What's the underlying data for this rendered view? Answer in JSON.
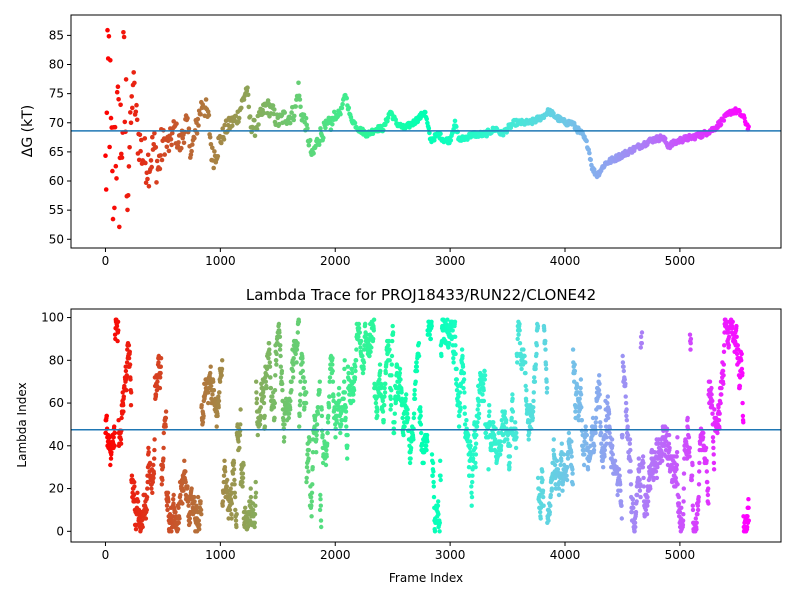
{
  "chart_data": [
    {
      "type": "scatter",
      "title": "",
      "xlabel": "",
      "ylabel": "ΔG (kT)",
      "xlim": [
        -300,
        5880
      ],
      "ylim": [
        48.5,
        88.5
      ],
      "xticks": [
        0,
        1000,
        2000,
        3000,
        4000,
        5000
      ],
      "yticks": [
        50,
        55,
        60,
        65,
        70,
        75,
        80,
        85
      ],
      "hline": 68.6,
      "hline_color": "#1f77b4",
      "colormap": "rainbow (red at frame 0 → violet at final frame)",
      "trace": [
        [
          0,
          60
        ],
        [
          30,
          80
        ],
        [
          60,
          55
        ],
        [
          90,
          70
        ],
        [
          120,
          63
        ],
        [
          160,
          75
        ],
        [
          200,
          62
        ],
        [
          240,
          77
        ],
        [
          280,
          68
        ],
        [
          330,
          64
        ],
        [
          380,
          63
        ],
        [
          420,
          66
        ],
        [
          460,
          62
        ],
        [
          500,
          67
        ],
        [
          550,
          66
        ],
        [
          600,
          69
        ],
        [
          650,
          66
        ],
        [
          700,
          70
        ],
        [
          750,
          65
        ],
        [
          800,
          70
        ],
        [
          850,
          74
        ],
        [
          900,
          70
        ],
        [
          930,
          64
        ],
        [
          960,
          65
        ],
        [
          1000,
          67
        ],
        [
          1050,
          69
        ],
        [
          1100,
          70
        ],
        [
          1150,
          71
        ],
        [
          1200,
          74
        ],
        [
          1230,
          76
        ],
        [
          1260,
          70
        ],
        [
          1300,
          69
        ],
        [
          1350,
          71
        ],
        [
          1400,
          73
        ],
        [
          1450,
          72
        ],
        [
          1500,
          70
        ],
        [
          1550,
          71
        ],
        [
          1600,
          71
        ],
        [
          1650,
          72
        ],
        [
          1680,
          76
        ],
        [
          1700,
          72
        ],
        [
          1740,
          70
        ],
        [
          1770,
          67
        ],
        [
          1800,
          64
        ],
        [
          1830,
          66
        ],
        [
          1870,
          68
        ],
        [
          1920,
          69
        ],
        [
          1970,
          70
        ],
        [
          2000,
          71
        ],
        [
          2050,
          72
        ],
        [
          2090,
          75
        ],
        [
          2130,
          71
        ],
        [
          2200,
          69
        ],
        [
          2280,
          68
        ],
        [
          2360,
          69
        ],
        [
          2420,
          69
        ],
        [
          2480,
          72
        ],
        [
          2530,
          70
        ],
        [
          2600,
          69
        ],
        [
          2680,
          70
        ],
        [
          2740,
          71
        ],
        [
          2780,
          72
        ],
        [
          2830,
          67
        ],
        [
          2900,
          68
        ],
        [
          2950,
          67
        ],
        [
          3000,
          67
        ],
        [
          3040,
          70
        ],
        [
          3080,
          67
        ],
        [
          3200,
          68
        ],
        [
          3300,
          68
        ],
        [
          3400,
          69
        ],
        [
          3450,
          68
        ],
        [
          3500,
          69
        ],
        [
          3560,
          70
        ],
        [
          3620,
          70
        ],
        [
          3700,
          70
        ],
        [
          3800,
          71
        ],
        [
          3860,
          72
        ],
        [
          3920,
          71
        ],
        [
          4000,
          70
        ],
        [
          4060,
          70
        ],
        [
          4100,
          69
        ],
        [
          4150,
          68
        ],
        [
          4200,
          66
        ],
        [
          4240,
          62
        ],
        [
          4280,
          61
        ],
        [
          4350,
          63
        ],
        [
          4450,
          64
        ],
        [
          4550,
          65
        ],
        [
          4650,
          66
        ],
        [
          4750,
          67
        ],
        [
          4850,
          67.5
        ],
        [
          4900,
          66
        ],
        [
          5000,
          67
        ],
        [
          5100,
          67.5
        ],
        [
          5200,
          68
        ],
        [
          5300,
          69
        ],
        [
          5400,
          71
        ],
        [
          5450,
          72
        ],
        [
          5500,
          72
        ],
        [
          5550,
          71
        ],
        [
          5600,
          69
        ]
      ]
    },
    {
      "type": "scatter",
      "title": "Lambda Trace for PROJ18433/RUN22/CLONE42",
      "xlabel": "Frame Index",
      "ylabel": "Lambda Index",
      "xlim": [
        -300,
        5880
      ],
      "ylim": [
        -5,
        104
      ],
      "xticks": [
        0,
        1000,
        2000,
        3000,
        4000,
        5000
      ],
      "yticks": [
        0,
        20,
        40,
        60,
        80,
        100
      ],
      "hline": 47.5,
      "hline_color": "#1f77b4",
      "colormap": "rainbow (red at frame 0 → violet at final frame)",
      "value_range": [
        0,
        99
      ],
      "frame_range": [
        0,
        5600
      ]
    }
  ]
}
